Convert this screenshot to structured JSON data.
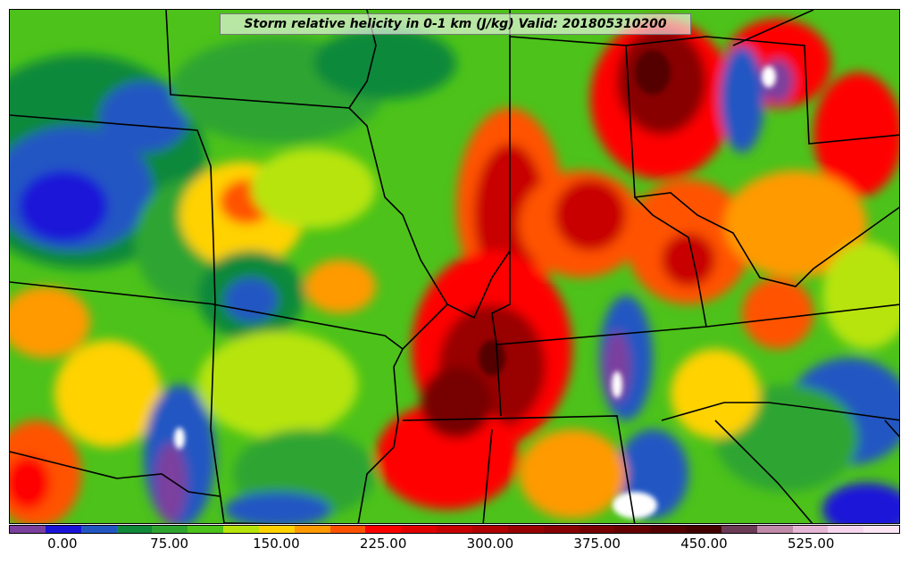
{
  "title": "Storm relative helicity in 0-1 km (J/kg) Valid: 201805310200",
  "colorbar": {
    "colors": [
      "#7b3f9e",
      "#1a13d8",
      "#2256c2",
      "#11893a",
      "#2fa530",
      "#4cc21a",
      "#b7e40a",
      "#ffd200",
      "#ff9a00",
      "#ff5200",
      "#ff0000",
      "#e00000",
      "#c80000",
      "#b00000",
      "#990000",
      "#880000",
      "#770000",
      "#660000",
      "#550000",
      "#440000",
      "#6b3a55",
      "#c08aa8",
      "#e6b6d6",
      "#f6d6ee",
      "#fce6f6"
    ],
    "tick_labels": [
      "0.00",
      "75.00",
      "150.00",
      "225.00",
      "300.00",
      "375.00",
      "450.00",
      "525.00"
    ]
  }
}
